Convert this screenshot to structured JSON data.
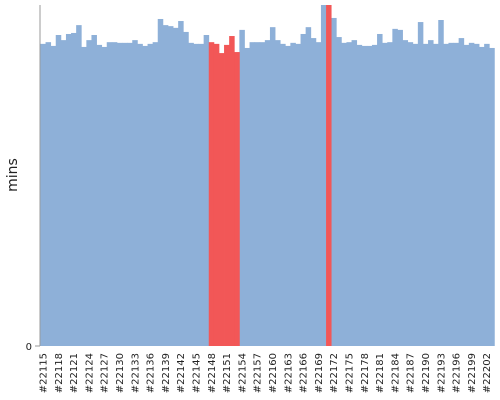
{
  "chart_data": {
    "type": "column-area",
    "y_label": "mins",
    "categories": [
      "#22115",
      null,
      null,
      "#22118",
      null,
      null,
      "#22121",
      null,
      null,
      "#22124",
      null,
      null,
      "#22127",
      null,
      null,
      "#22130",
      null,
      null,
      "#22133",
      null,
      null,
      "#22136",
      null,
      null,
      "#22139",
      null,
      null,
      "#22142",
      null,
      null,
      "#22145",
      null,
      null,
      "#22148",
      null,
      null,
      "#22151",
      null,
      null,
      "#22154",
      null,
      null,
      "#22157",
      null,
      null,
      "#22160",
      null,
      null,
      "#22163",
      null,
      null,
      "#22166",
      null,
      null,
      "#22169",
      null,
      null,
      "#22172",
      null,
      null,
      "#22175",
      null,
      null,
      "#22178",
      null,
      null,
      "#22181",
      null,
      null,
      "#22184",
      null,
      null,
      "#22187",
      null,
      null,
      "#22190",
      null,
      null,
      "#22193",
      null,
      null,
      "#22196",
      null,
      null,
      "#22199",
      null,
      null,
      "#22202",
      null
    ],
    "series": [
      {
        "color": "#8eb0d8",
        "values": [
          88.6,
          89.1,
          88.0,
          91.2,
          89.7,
          91.5,
          91.8,
          94.1,
          87.7,
          89.7,
          91.2,
          88.3,
          87.7,
          89.1,
          89.1,
          88.9,
          88.9,
          88.9,
          89.7,
          88.6,
          88.0,
          88.6,
          89.1,
          95.9,
          94.1,
          93.8,
          93.3,
          95.3,
          92.1,
          88.9,
          88.6,
          88.6,
          91.2,
          null,
          null,
          null,
          null,
          null,
          null,
          92.7,
          87.4,
          89.1,
          89.1,
          89.1,
          89.7,
          93.5,
          89.7,
          88.6,
          88.0,
          88.9,
          88.6,
          91.5,
          93.5,
          90.3,
          89.1,
          100,
          null,
          96.2,
          90.6,
          88.9,
          89.1,
          89.7,
          88.3,
          88.0,
          88.0,
          88.3,
          91.5,
          88.9,
          89.1,
          93.0,
          92.7,
          89.7,
          89.1,
          88.6,
          95.0,
          88.6,
          89.7,
          88.6,
          95.6,
          88.6,
          88.9,
          88.9,
          90.3,
          88.3,
          88.9,
          88.6,
          87.7,
          88.6,
          87.4
        ]
      },
      {
        "color": "#f25757",
        "values": [
          null,
          null,
          null,
          null,
          null,
          null,
          null,
          null,
          null,
          null,
          null,
          null,
          null,
          null,
          null,
          null,
          null,
          null,
          null,
          null,
          null,
          null,
          null,
          null,
          null,
          null,
          null,
          null,
          null,
          null,
          null,
          null,
          null,
          89.1,
          88.6,
          85.9,
          88.3,
          90.9,
          86.2,
          null,
          null,
          null,
          null,
          null,
          null,
          null,
          null,
          null,
          null,
          null,
          null,
          null,
          null,
          null,
          null,
          null,
          100,
          null,
          null,
          null,
          null,
          null,
          null,
          null,
          null,
          null,
          null,
          null,
          null,
          null,
          null,
          null,
          null,
          null,
          null,
          null,
          null,
          null,
          null,
          null,
          null,
          null,
          null,
          null,
          null,
          null,
          null,
          null,
          null
        ]
      }
    ],
    "ylim": [
      0,
      100
    ],
    "yticks": [
      0
    ]
  }
}
